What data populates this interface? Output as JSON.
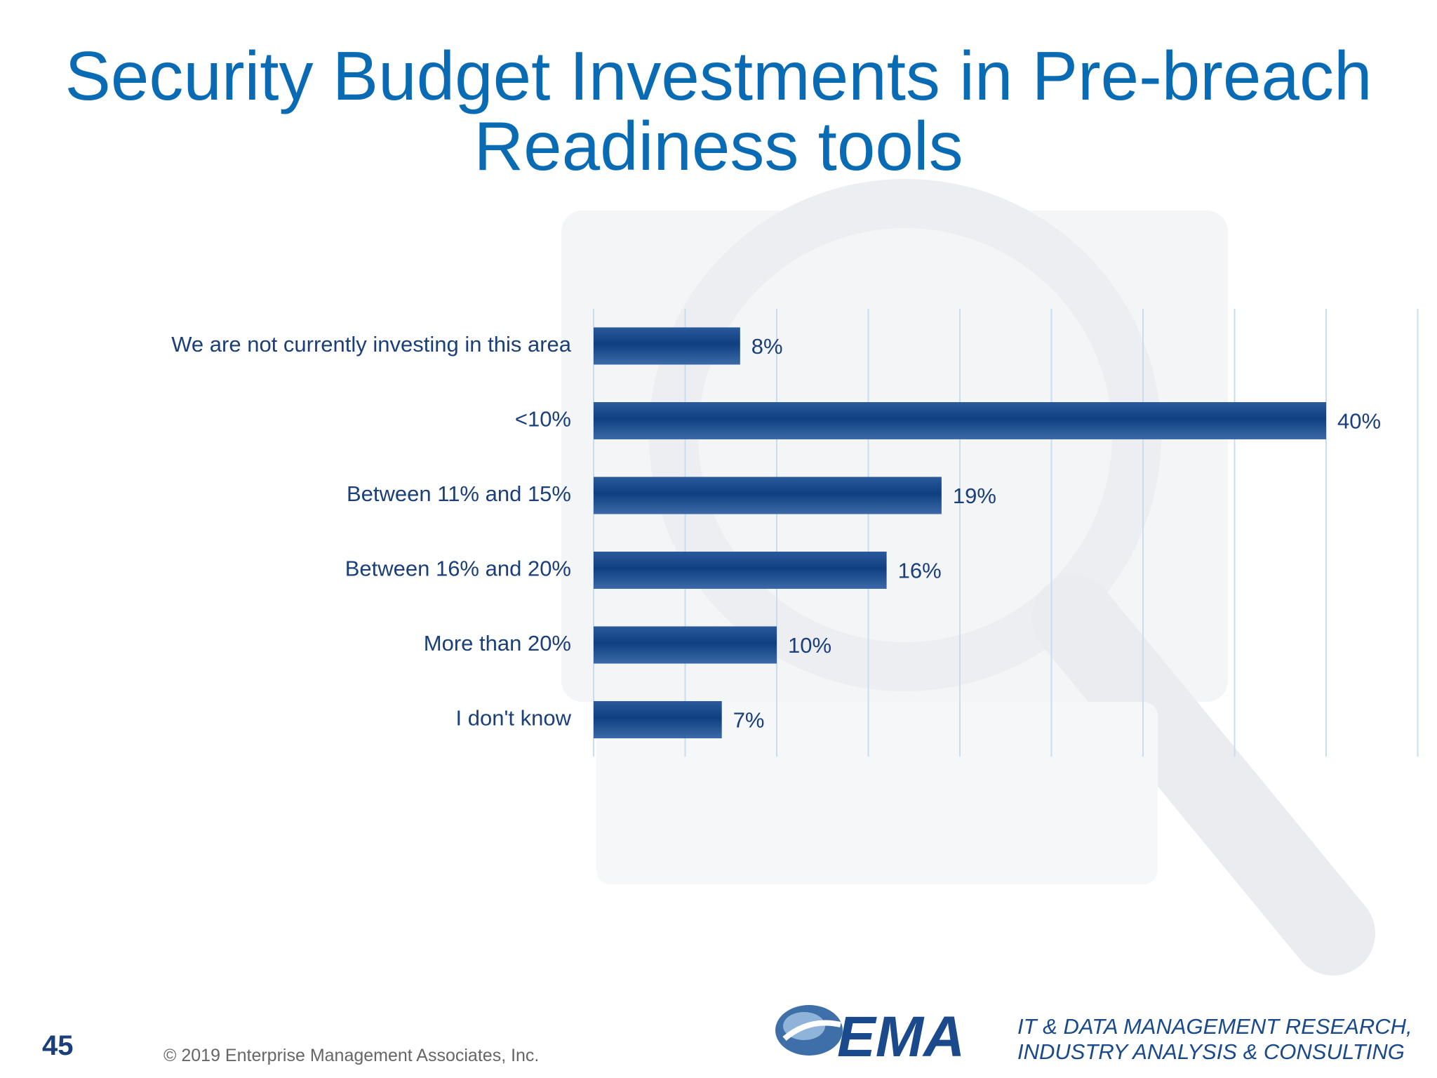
{
  "slide": {
    "title_line1": "Security Budget Investments in Pre-breach",
    "title_line2": "Readiness tools",
    "page_number": "45",
    "copyright": "© 2019 Enterprise Management Associates, Inc.",
    "logo_text": "EMA",
    "tagline_line1": "IT & DATA MANAGEMENT RESEARCH,",
    "tagline_line2": "INDUSTRY ANALYSIS & CONSULTING"
  },
  "colors": {
    "title": "#0a6bb5",
    "bar": "#1b4a8c",
    "label": "#1a3f7a",
    "grid": "#c9ddf0"
  },
  "chart_data": {
    "type": "bar",
    "orientation": "horizontal",
    "categories": [
      "We are not currently investing in this area",
      "<10%",
      "Between 11% and 15%",
      "Between 16% and 20%",
      "More than 20%",
      "I don't know"
    ],
    "values": [
      8,
      40,
      19,
      16,
      10,
      7
    ],
    "data_labels": [
      "8%",
      "40%",
      "19%",
      "16%",
      "10%",
      "7%"
    ],
    "xlim": [
      0,
      45
    ],
    "grid": true,
    "legend": "none"
  }
}
